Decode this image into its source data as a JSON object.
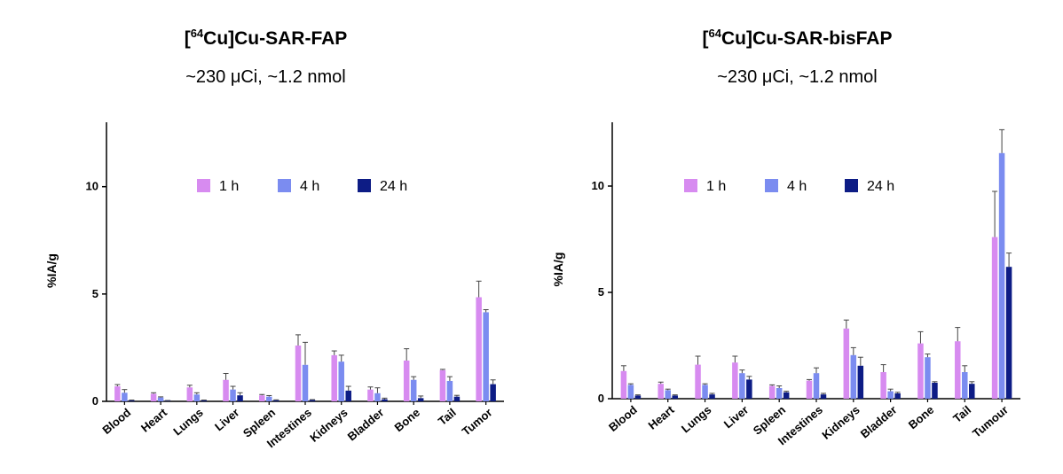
{
  "colors": {
    "1 h": "#D78BF0",
    "4 h": "#7B8CF0",
    "24 h": "#0D1C85"
  },
  "chart_data": [
    {
      "type": "bar",
      "title_pre": "[",
      "title_sup": "64",
      "title_post": "Cu]Cu-SAR-FAP",
      "subtitle": "~230 μCi, ~1.2 nmol",
      "ylabel": "%IA/g",
      "xlabel": "",
      "ylim": [
        0,
        13
      ],
      "yticks": [
        0,
        5,
        10
      ],
      "legend_position": "top-center",
      "categories": [
        "Blood",
        "Heart",
        "Lungs",
        "Liver",
        "Spleen",
        "Intestines",
        "Kidneys",
        "Bladder",
        "Bone",
        "Tail",
        "Tumor"
      ],
      "series": [
        {
          "name": "1 h",
          "values": [
            0.7,
            0.35,
            0.65,
            1.0,
            0.28,
            2.6,
            2.15,
            0.55,
            1.9,
            1.45,
            4.85
          ],
          "errors": [
            0.08,
            0.05,
            0.1,
            0.3,
            0.04,
            0.5,
            0.2,
            0.12,
            0.55,
            0.04,
            0.75
          ]
        },
        {
          "name": "4 h",
          "values": [
            0.4,
            0.18,
            0.32,
            0.55,
            0.22,
            1.7,
            1.85,
            0.38,
            1.0,
            0.95,
            4.15
          ],
          "errors": [
            0.15,
            0.03,
            0.08,
            0.15,
            0.05,
            1.05,
            0.3,
            0.25,
            0.15,
            0.2,
            0.12
          ]
        },
        {
          "name": "24 h",
          "values": [
            0.04,
            0.03,
            0.05,
            0.28,
            0.05,
            0.06,
            0.5,
            0.1,
            0.15,
            0.22,
            0.8
          ],
          "errors": [
            0.02,
            0.01,
            0.01,
            0.12,
            0.02,
            0.02,
            0.2,
            0.05,
            0.1,
            0.06,
            0.2
          ]
        }
      ]
    },
    {
      "type": "bar",
      "title_pre": "[",
      "title_sup": "64",
      "title_post": "Cu]Cu-SAR-bisFAP",
      "subtitle": "~230 μCi, ~1.2 nmol",
      "ylabel": "%IA/g",
      "xlabel": "",
      "ylim": [
        0,
        13
      ],
      "yticks": [
        0,
        5,
        10
      ],
      "legend_position": "top-center",
      "categories": [
        "Blood",
        "Heart",
        "Lungs",
        "Liver",
        "Spleen",
        "Intestines",
        "Kidneys",
        "Bladder",
        "Bone",
        "Tail",
        "Tumour"
      ],
      "series": [
        {
          "name": "1 h",
          "values": [
            1.3,
            0.7,
            1.6,
            1.7,
            0.6,
            0.85,
            3.3,
            1.25,
            2.6,
            2.7,
            7.6
          ],
          "errors": [
            0.25,
            0.08,
            0.4,
            0.3,
            0.05,
            0.05,
            0.4,
            0.35,
            0.55,
            0.65,
            2.15
          ]
        },
        {
          "name": "4 h",
          "values": [
            0.65,
            0.4,
            0.65,
            1.2,
            0.5,
            1.2,
            2.05,
            0.35,
            1.95,
            1.25,
            11.55
          ],
          "errors": [
            0.05,
            0.05,
            0.05,
            0.15,
            0.1,
            0.25,
            0.35,
            0.1,
            0.15,
            0.3,
            1.1
          ]
        },
        {
          "name": "24 h",
          "values": [
            0.15,
            0.15,
            0.2,
            0.9,
            0.3,
            0.2,
            1.55,
            0.25,
            0.75,
            0.7,
            6.2
          ],
          "errors": [
            0.03,
            0.03,
            0.05,
            0.15,
            0.05,
            0.05,
            0.4,
            0.05,
            0.05,
            0.1,
            0.65
          ]
        }
      ]
    }
  ]
}
